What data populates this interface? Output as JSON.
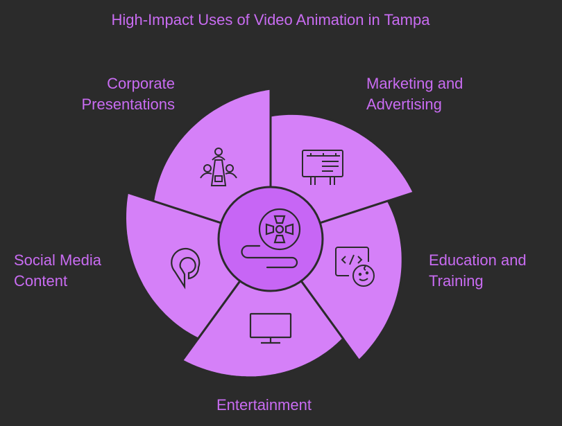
{
  "title": "High-Impact Uses of Video Animation in Tampa",
  "colors": {
    "background": "#2b2b2b",
    "segment": "#d580f8",
    "center": "#c766f5",
    "text": "#c96cf2",
    "outline": "#2b2b2b"
  },
  "center": {
    "icon": "film-reel-icon"
  },
  "segments": [
    {
      "label_line1": "Marketing and",
      "label_line2": "Advertising",
      "icon": "billboard-icon"
    },
    {
      "label_line1": "Education and",
      "label_line2": "Training",
      "icon": "code-learning-icon"
    },
    {
      "label_line1": "Entertainment",
      "label_line2": "",
      "icon": "monitor-icon"
    },
    {
      "label_line1": "Social Media",
      "label_line2": "Content",
      "icon": "social-pin-icon"
    },
    {
      "label_line1": "Corporate",
      "label_line2": "Presentations",
      "icon": "meeting-icon"
    }
  ]
}
